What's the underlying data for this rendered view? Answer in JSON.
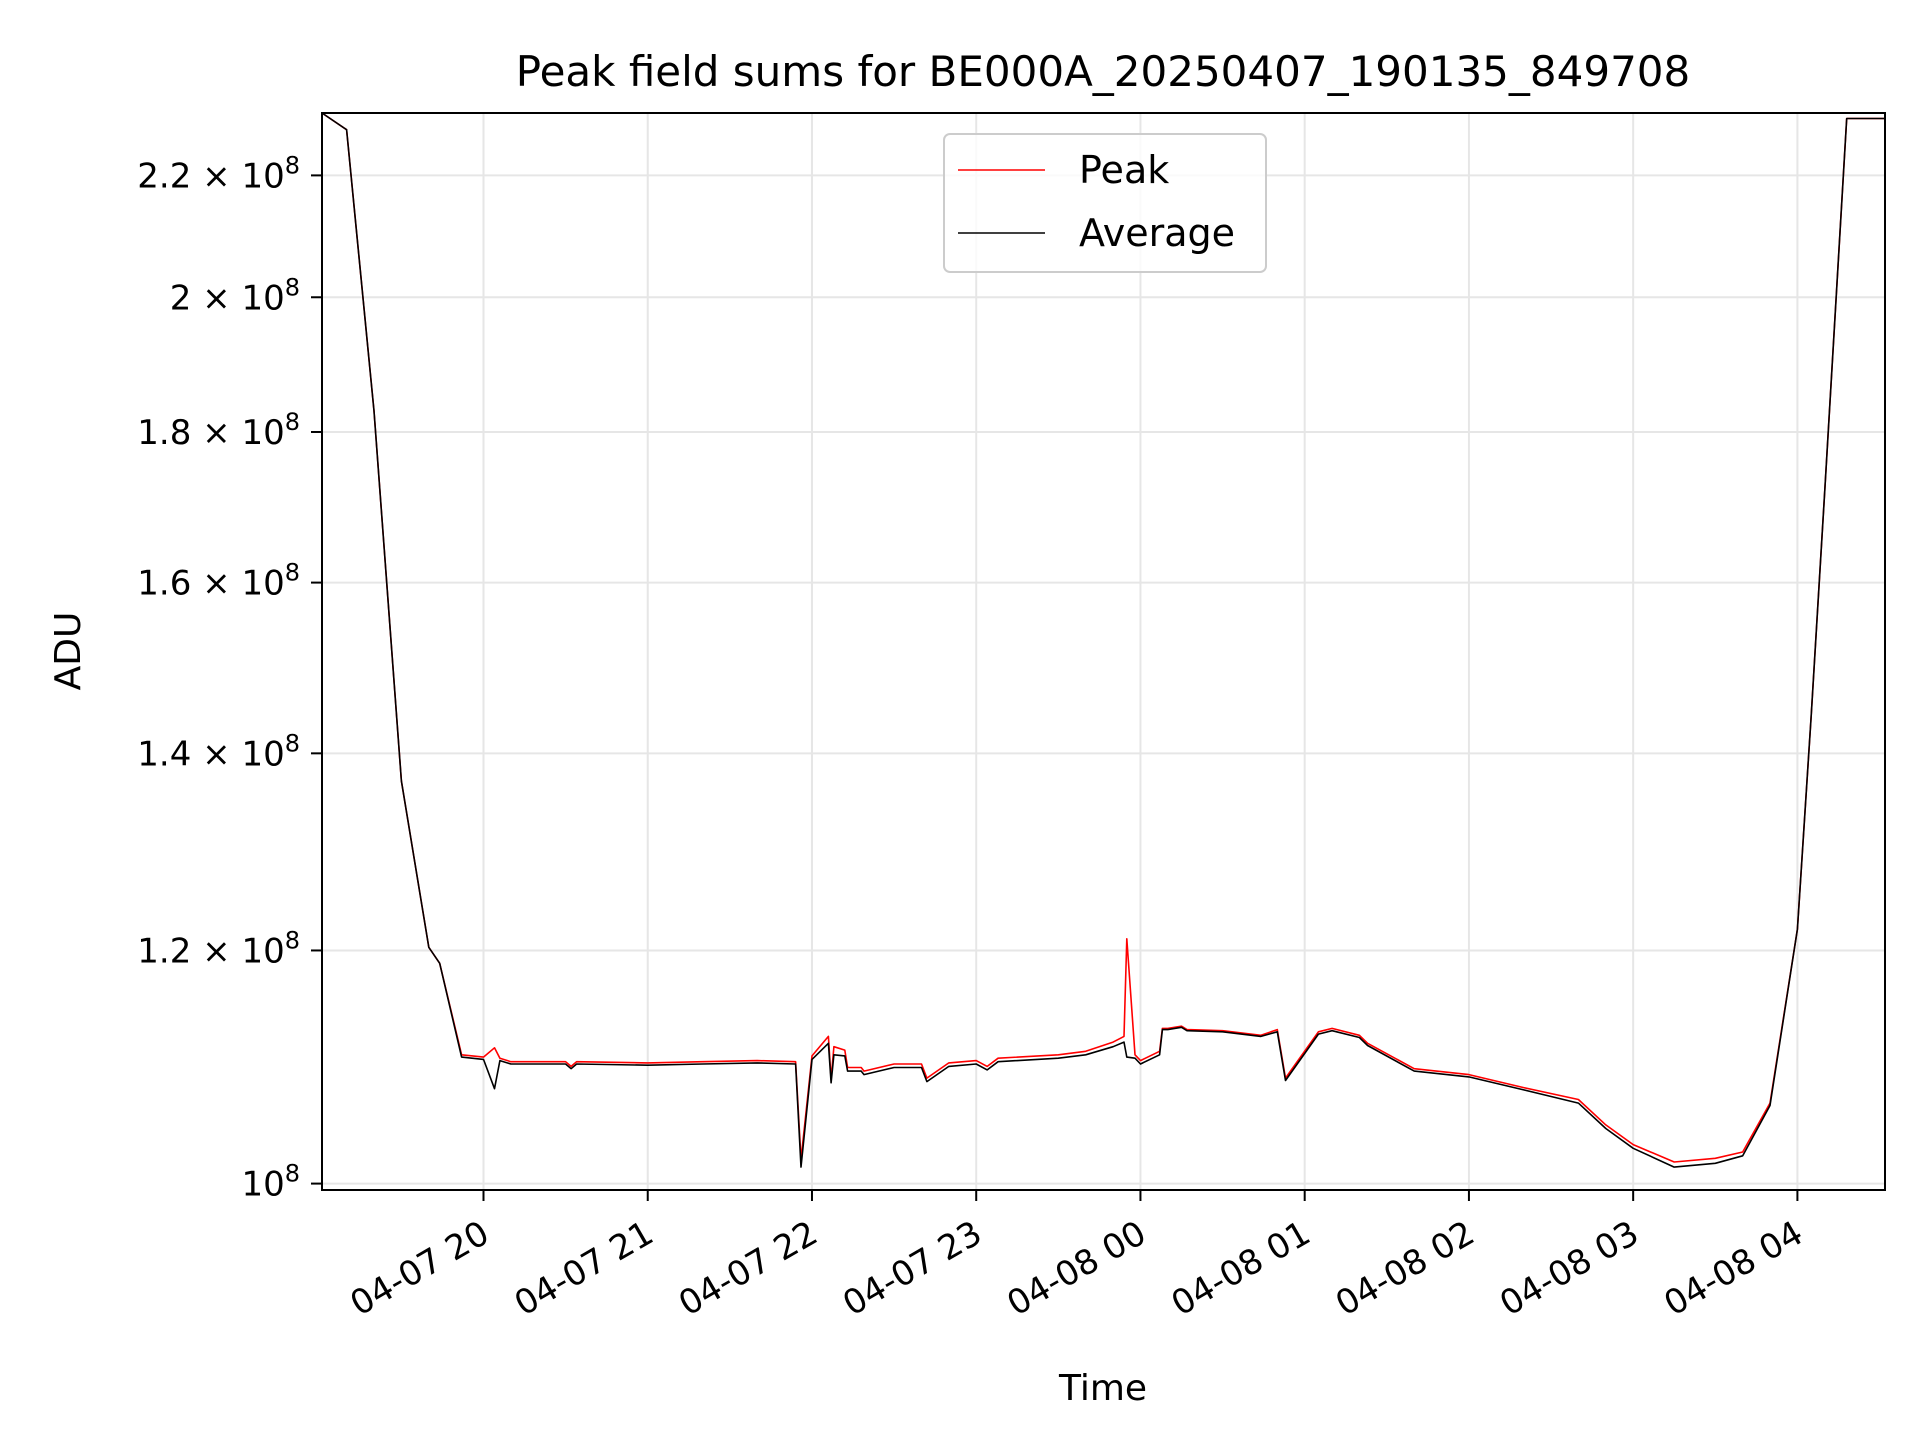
{
  "chart_data": {
    "type": "line",
    "title": "Peak field sums for BE000A_20250407_190135_849708",
    "xlabel": "Time",
    "ylabel": "ADU",
    "yscale": "log",
    "xlim": [
      "2025-04-07 19:01",
      "2025-04-08 04:32"
    ],
    "ylim": [
      99500000,
      231000000
    ],
    "grid": true,
    "legend_position": "upper center",
    "x_tick_labels": [
      "04-07 20",
      "04-07 21",
      "04-07 22",
      "04-07 23",
      "04-08 00",
      "04-08 01",
      "04-08 02",
      "04-08 03",
      "04-08 04"
    ],
    "x_ticks": [
      "2025-04-07 20:00",
      "2025-04-07 21:00",
      "2025-04-07 22:00",
      "2025-04-07 23:00",
      "2025-04-08 00:00",
      "2025-04-08 01:00",
      "2025-04-08 02:00",
      "2025-04-08 03:00",
      "2025-04-08 04:00"
    ],
    "y_ticks": [
      {
        "value": 100000000,
        "mantissa": "",
        "exponent": "8"
      },
      {
        "value": 120000000,
        "mantissa": "1.2",
        "exponent": "8"
      },
      {
        "value": 140000000,
        "mantissa": "1.4",
        "exponent": "8"
      },
      {
        "value": 160000000,
        "mantissa": "1.6",
        "exponent": "8"
      },
      {
        "value": 180000000,
        "mantissa": "1.8",
        "exponent": "8"
      },
      {
        "value": 200000000,
        "mantissa": "2",
        "exponent": "8"
      },
      {
        "value": 220000000,
        "mantissa": "2.2",
        "exponent": "8"
      }
    ],
    "series": [
      {
        "name": "Peak",
        "color": "#ff0000",
        "x": [
          "2025-04-07 19:01",
          "2025-04-07 19:10",
          "2025-04-07 19:20",
          "2025-04-07 19:30",
          "2025-04-07 19:40",
          "2025-04-07 19:44",
          "2025-04-07 19:52",
          "2025-04-07 20:00",
          "2025-04-07 20:04",
          "2025-04-07 20:06",
          "2025-04-07 20:10",
          "2025-04-07 20:30",
          "2025-04-07 20:32",
          "2025-04-07 20:34",
          "2025-04-07 21:00",
          "2025-04-07 21:20",
          "2025-04-07 21:40",
          "2025-04-07 21:54",
          "2025-04-07 21:56",
          "2025-04-07 22:00",
          "2025-04-07 22:06",
          "2025-04-07 22:07",
          "2025-04-07 22:08",
          "2025-04-07 22:12",
          "2025-04-07 22:13",
          "2025-04-07 22:18",
          "2025-04-07 22:19",
          "2025-04-07 22:30",
          "2025-04-07 22:40",
          "2025-04-07 22:42",
          "2025-04-07 22:50",
          "2025-04-07 23:00",
          "2025-04-07 23:04",
          "2025-04-07 23:08",
          "2025-04-07 23:30",
          "2025-04-07 23:40",
          "2025-04-07 23:50",
          "2025-04-07 23:54",
          "2025-04-07 23:55",
          "2025-04-07 23:58",
          "2025-04-08 00:00",
          "2025-04-08 00:07",
          "2025-04-08 00:08",
          "2025-04-08 00:10",
          "2025-04-08 00:15",
          "2025-04-08 00:17",
          "2025-04-08 00:30",
          "2025-04-08 00:44",
          "2025-04-08 00:50",
          "2025-04-08 00:53",
          "2025-04-08 01:05",
          "2025-04-08 01:10",
          "2025-04-08 01:20",
          "2025-04-08 01:23",
          "2025-04-08 01:40",
          "2025-04-08 02:00",
          "2025-04-08 02:20",
          "2025-04-08 02:40",
          "2025-04-08 02:50",
          "2025-04-08 03:00",
          "2025-04-08 03:15",
          "2025-04-08 03:30",
          "2025-04-08 03:40",
          "2025-04-08 03:50",
          "2025-04-08 04:00",
          "2025-04-08 04:05",
          "2025-04-08 04:10",
          "2025-04-08 04:18",
          "2025-04-08 04:32"
        ],
        "y": [
          231000000,
          228000000,
          183000000,
          137000000,
          120300000,
          118800000,
          110600000,
          110400000,
          111200000,
          110300000,
          110000000,
          110000000,
          109600000,
          110000000,
          109900000,
          110000000,
          110100000,
          110000000,
          101900000,
          110500000,
          112200000,
          108500000,
          111300000,
          111000000,
          109500000,
          109500000,
          109200000,
          109800000,
          109800000,
          108600000,
          109900000,
          110100000,
          109600000,
          110300000,
          110600000,
          110900000,
          111700000,
          112200000,
          121100000,
          110600000,
          110100000,
          110900000,
          112900000,
          112900000,
          113100000,
          112800000,
          112700000,
          112300000,
          112800000,
          108600000,
          112600000,
          112900000,
          112300000,
          111600000,
          109400000,
          108900000,
          107800000,
          106800000,
          104700000,
          103100000,
          101700000,
          102000000,
          102500000,
          106500000,
          122000000,
          144000000,
          172000000,
          230000000,
          230000000
        ]
      },
      {
        "name": "Average",
        "color": "#000000",
        "x": [
          "2025-04-07 19:01",
          "2025-04-07 19:10",
          "2025-04-07 19:20",
          "2025-04-07 19:30",
          "2025-04-07 19:40",
          "2025-04-07 19:44",
          "2025-04-07 19:52",
          "2025-04-07 20:00",
          "2025-04-07 20:04",
          "2025-04-07 20:06",
          "2025-04-07 20:10",
          "2025-04-07 20:30",
          "2025-04-07 20:32",
          "2025-04-07 20:34",
          "2025-04-07 21:00",
          "2025-04-07 21:20",
          "2025-04-07 21:40",
          "2025-04-07 21:54",
          "2025-04-07 21:56",
          "2025-04-07 22:00",
          "2025-04-07 22:06",
          "2025-04-07 22:07",
          "2025-04-07 22:08",
          "2025-04-07 22:12",
          "2025-04-07 22:13",
          "2025-04-07 22:18",
          "2025-04-07 22:19",
          "2025-04-07 22:30",
          "2025-04-07 22:40",
          "2025-04-07 22:42",
          "2025-04-07 22:50",
          "2025-04-07 23:00",
          "2025-04-07 23:04",
          "2025-04-07 23:08",
          "2025-04-07 23:30",
          "2025-04-07 23:40",
          "2025-04-07 23:50",
          "2025-04-07 23:54",
          "2025-04-07 23:55",
          "2025-04-07 23:58",
          "2025-04-08 00:00",
          "2025-04-08 00:07",
          "2025-04-08 00:08",
          "2025-04-08 00:10",
          "2025-04-08 00:15",
          "2025-04-08 00:17",
          "2025-04-08 00:30",
          "2025-04-08 00:44",
          "2025-04-08 00:50",
          "2025-04-08 00:53",
          "2025-04-08 01:05",
          "2025-04-08 01:10",
          "2025-04-08 01:20",
          "2025-04-08 01:23",
          "2025-04-08 01:40",
          "2025-04-08 02:00",
          "2025-04-08 02:20",
          "2025-04-08 02:40",
          "2025-04-08 02:50",
          "2025-04-08 03:00",
          "2025-04-08 03:15",
          "2025-04-08 03:30",
          "2025-04-08 03:40",
          "2025-04-08 03:50",
          "2025-04-08 04:00",
          "2025-04-08 04:05",
          "2025-04-08 04:10",
          "2025-04-08 04:18",
          "2025-04-08 04:32"
        ],
        "y": [
          231000000,
          228000000,
          183000000,
          137000000,
          120300000,
          118800000,
          110400000,
          110200000,
          107700000,
          110100000,
          109800000,
          109800000,
          109400000,
          109800000,
          109700000,
          109800000,
          109900000,
          109800000,
          101300000,
          110200000,
          111600000,
          108200000,
          110600000,
          110500000,
          109200000,
          109200000,
          108900000,
          109500000,
          109500000,
          108300000,
          109600000,
          109800000,
          109300000,
          110000000,
          110300000,
          110600000,
          111300000,
          111700000,
          110400000,
          110300000,
          109800000,
          110600000,
          112800000,
          112800000,
          113000000,
          112700000,
          112600000,
          112200000,
          112600000,
          108400000,
          112400000,
          112700000,
          112100000,
          111400000,
          109200000,
          108700000,
          107600000,
          106500000,
          104400000,
          102800000,
          101300000,
          101600000,
          102200000,
          106300000,
          122000000,
          144000000,
          172000000,
          230000000,
          230000000
        ]
      }
    ]
  }
}
